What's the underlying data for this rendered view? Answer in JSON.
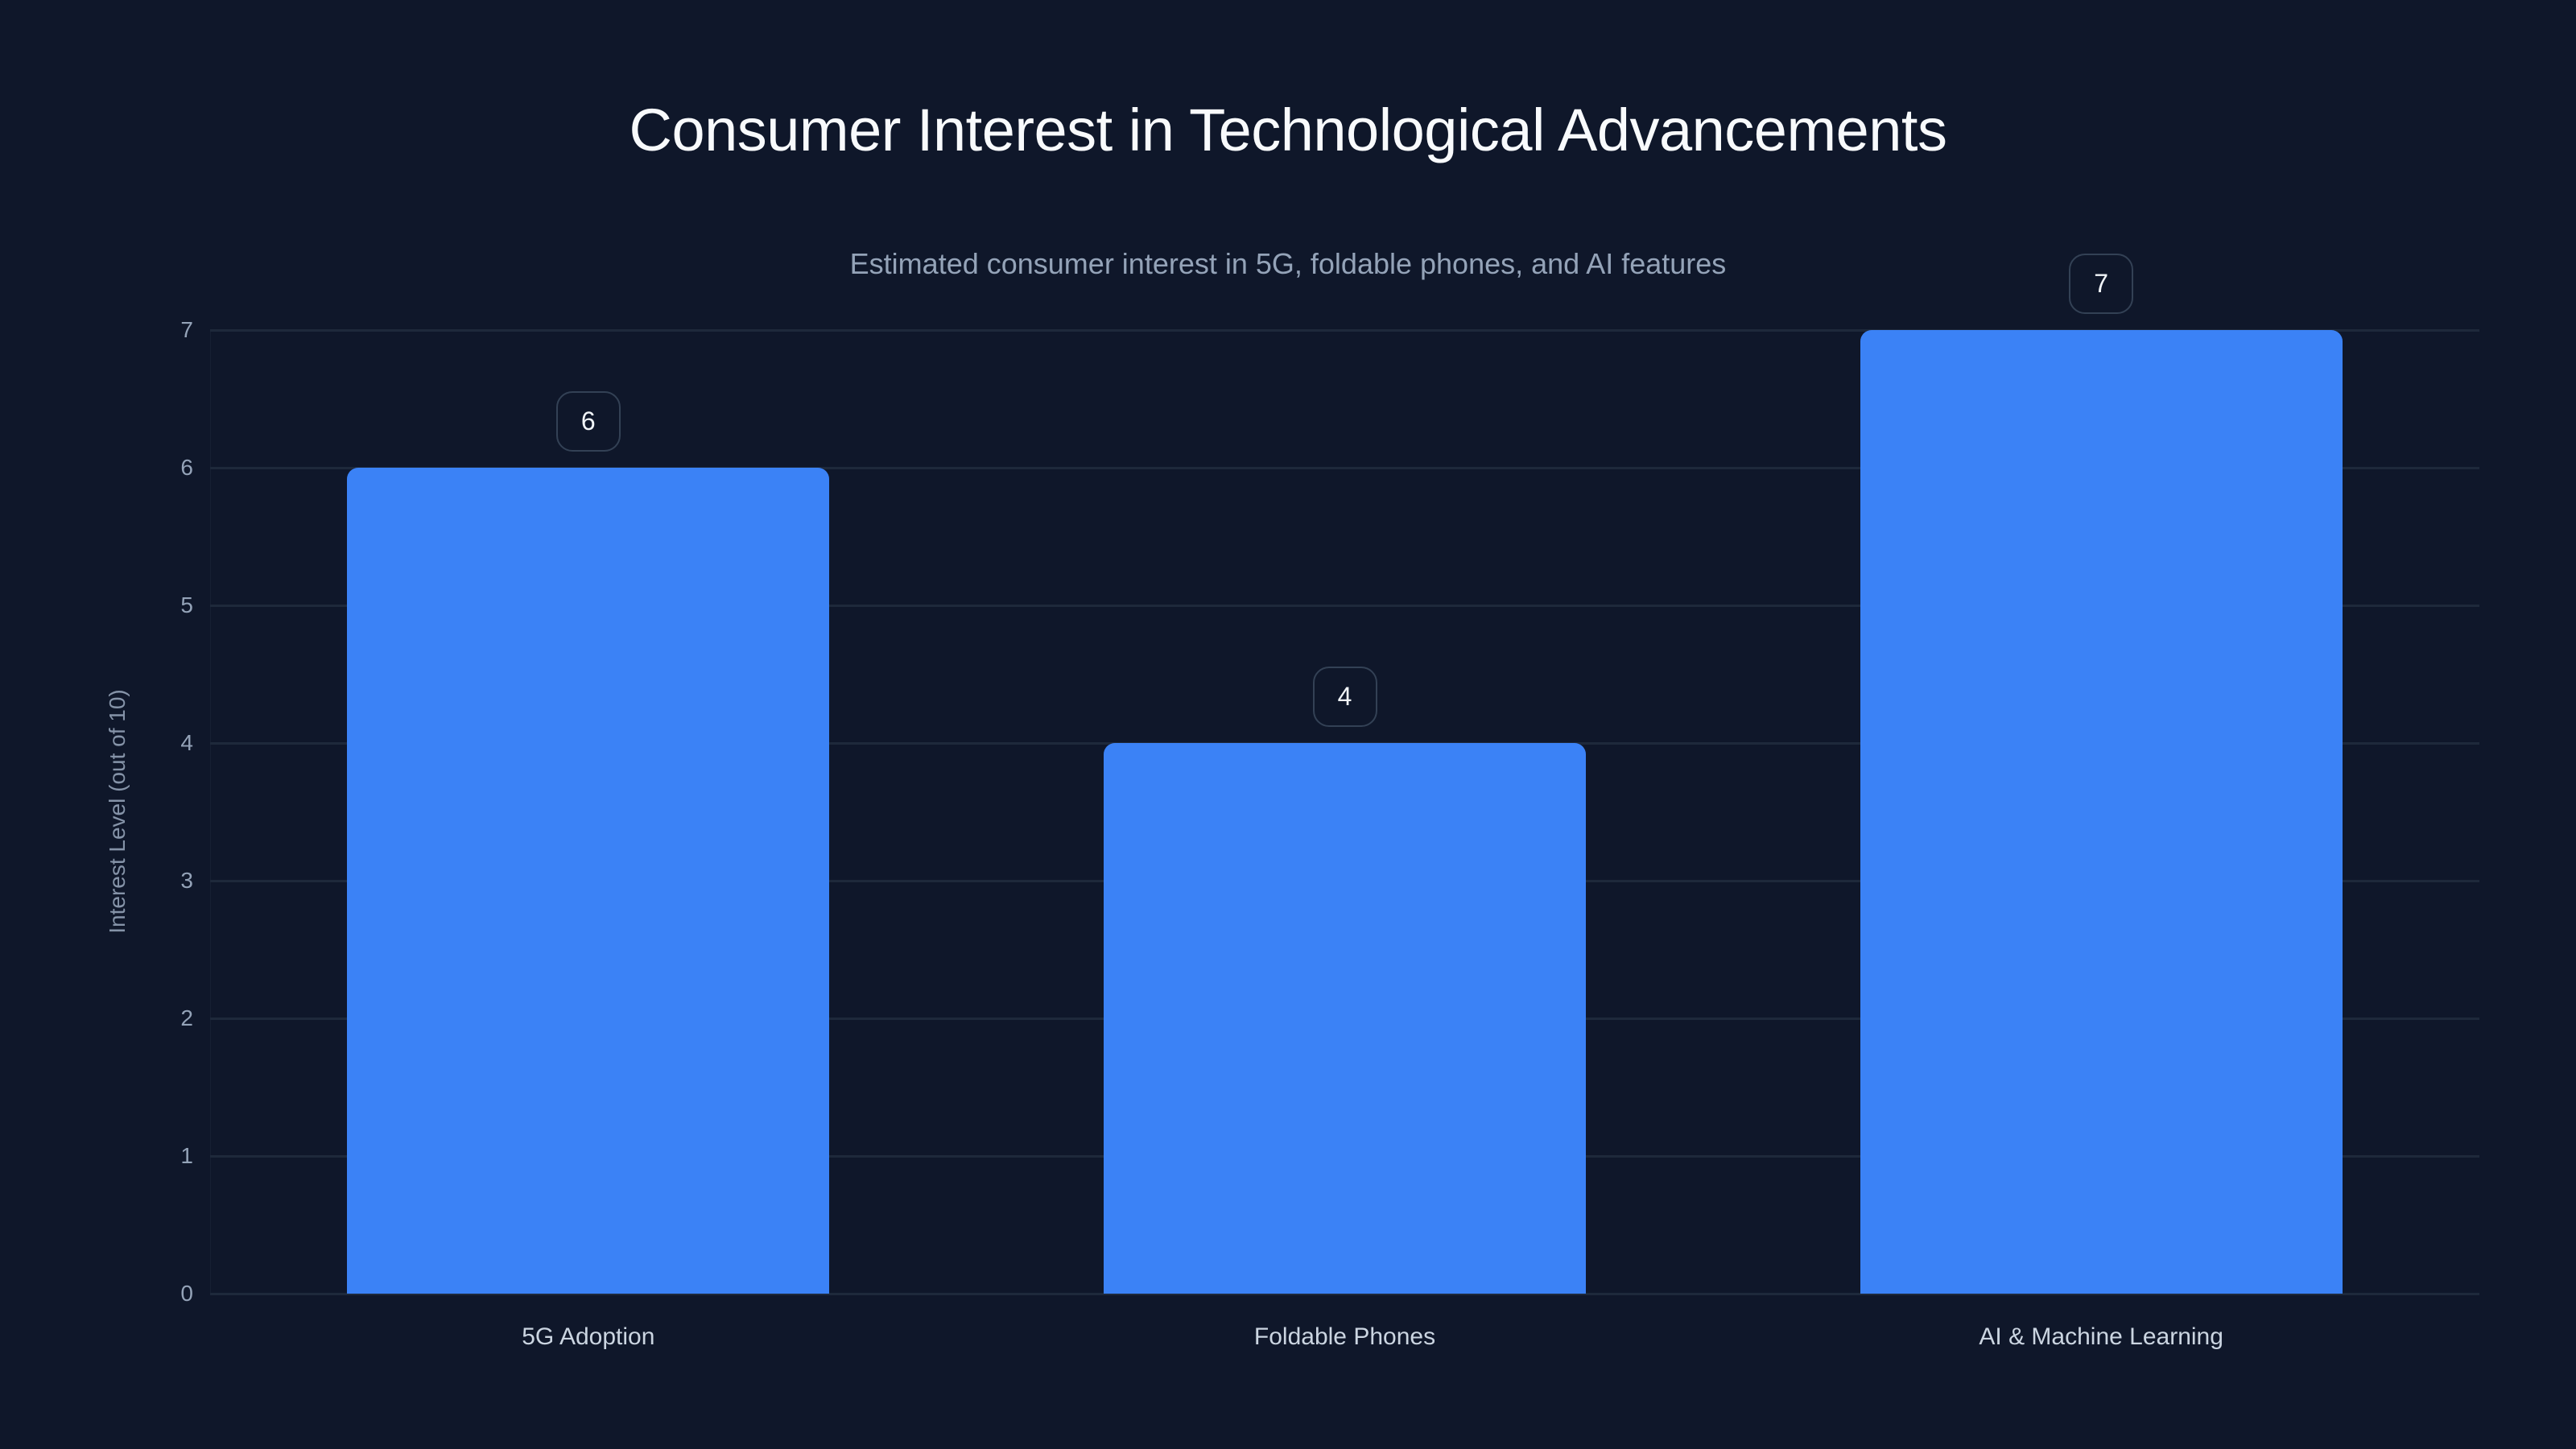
{
  "header": {
    "title": "Consumer Interest in Technological Advancements",
    "subtitle": "Estimated consumer interest in 5G, foldable phones, and AI features"
  },
  "axes": {
    "y_label": "Interest Level (out of 10)",
    "y_ticks": [
      "0",
      "1",
      "2",
      "3",
      "4",
      "5",
      "6",
      "7"
    ]
  },
  "bars": [
    {
      "category": "5G Adoption",
      "value": 6,
      "value_label": "6"
    },
    {
      "category": "Foldable Phones",
      "value": 4,
      "value_label": "4"
    },
    {
      "category": "AI & Machine Learning",
      "value": 7,
      "value_label": "7"
    }
  ],
  "colors": {
    "background": "#0f172a",
    "bar": "#3b82f6",
    "gridline": "#1e293b",
    "badge_border": "#334155",
    "title": "#f8fafc",
    "subtitle": "#94a3b8",
    "category_label": "#cbd5e1"
  },
  "chart_data": {
    "type": "bar",
    "title": "Consumer Interest in Technological Advancements",
    "subtitle": "Estimated consumer interest in 5G, foldable phones, and AI features",
    "categories": [
      "5G Adoption",
      "Foldable Phones",
      "AI & Machine Learning"
    ],
    "values": [
      6,
      4,
      7
    ],
    "xlabel": "",
    "ylabel": "Interest Level (out of 10)",
    "ylim": [
      0,
      7
    ],
    "yticks": [
      0,
      1,
      2,
      3,
      4,
      5,
      6,
      7
    ],
    "grid": true,
    "legend": null,
    "data_labels": true
  }
}
